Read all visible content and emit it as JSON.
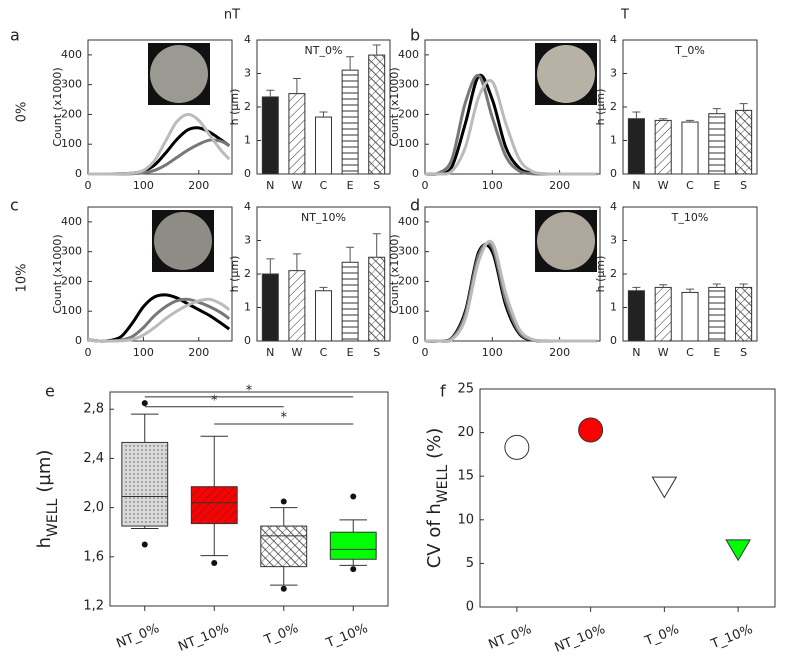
{
  "figure": {
    "column_labels": [
      "nT",
      "T"
    ],
    "row_labels": [
      "0%",
      "10%"
    ],
    "panels": [
      "a",
      "b",
      "c",
      "d",
      "e",
      "f"
    ]
  },
  "chart_data": [
    {
      "type": "line",
      "ylabel": "Count (x1000)",
      "x": [
        0,
        20,
        40,
        60,
        80,
        100,
        120,
        140,
        160,
        180,
        200,
        220,
        240,
        255
      ],
      "xlim": [
        0,
        260
      ],
      "xticks": [
        0,
        100,
        200
      ],
      "ylim": [
        0,
        450
      ],
      "yticks": [
        0,
        100,
        200,
        300,
        400
      ],
      "series": [
        {
          "color": "#000000",
          "values": [
            0,
            0,
            0,
            1,
            3,
            10,
            30,
            70,
            115,
            148,
            155,
            140,
            115,
            95
          ]
        },
        {
          "color": "#777777",
          "values": [
            0,
            0,
            0,
            0,
            1,
            4,
            12,
            30,
            55,
            80,
            100,
            114,
            110,
            95
          ]
        },
        {
          "color": "#bbbbbb",
          "values": [
            0,
            0,
            0,
            1,
            3,
            12,
            45,
            110,
            175,
            200,
            180,
            130,
            80,
            50
          ]
        }
      ]
    },
    {
      "type": "bar",
      "title": "NT_0%",
      "ylabel": "h (µm)",
      "categories": [
        "N",
        "W",
        "C",
        "E",
        "S"
      ],
      "values": [
        2.3,
        2.4,
        1.7,
        3.1,
        3.55
      ],
      "errors": [
        0.2,
        0.45,
        0.15,
        0.4,
        0.3
      ],
      "colors": [
        "#222222",
        "#ffffff",
        "#ffffff",
        "#ffffff",
        "#ffffff"
      ],
      "hatch": [
        "none",
        "diagonal",
        "none",
        "horizontal",
        "cross"
      ],
      "ylim": [
        0,
        4
      ],
      "yticks": [
        0,
        1,
        2,
        3,
        4
      ]
    },
    {
      "type": "line",
      "ylabel": "Count (x1000)",
      "x": [
        0,
        20,
        40,
        60,
        80,
        100,
        120,
        140,
        160,
        180,
        200,
        220,
        240,
        255
      ],
      "xlim": [
        0,
        260
      ],
      "xticks": [
        0,
        100,
        200
      ],
      "ylim": [
        0,
        450
      ],
      "yticks": [
        0,
        100,
        200,
        300,
        400
      ],
      "series": [
        {
          "color": "#000000",
          "values": [
            0,
            1,
            25,
            170,
            330,
            250,
            90,
            20,
            3,
            0,
            0,
            0,
            0,
            0
          ]
        },
        {
          "color": "#777777",
          "values": [
            0,
            3,
            50,
            240,
            330,
            190,
            60,
            10,
            1,
            0,
            0,
            0,
            0,
            0
          ]
        },
        {
          "color": "#bbbbbb",
          "values": [
            0,
            0,
            10,
            90,
            260,
            310,
            170,
            50,
            8,
            1,
            0,
            0,
            0,
            0
          ]
        }
      ]
    },
    {
      "type": "bar",
      "title": "T_0%",
      "ylabel": "h (µm)",
      "categories": [
        "N",
        "W",
        "C",
        "E",
        "S"
      ],
      "values": [
        1.65,
        1.6,
        1.55,
        1.8,
        1.9
      ],
      "errors": [
        0.2,
        0.05,
        0.05,
        0.15,
        0.2
      ],
      "colors": [
        "#222222",
        "#ffffff",
        "#ffffff",
        "#ffffff",
        "#ffffff"
      ],
      "hatch": [
        "none",
        "diagonal",
        "none",
        "horizontal",
        "cross"
      ],
      "ylim": [
        0,
        4
      ],
      "yticks": [
        0,
        1,
        2,
        3,
        4
      ]
    },
    {
      "type": "line",
      "ylabel": "Count (x1000)",
      "x": [
        0,
        20,
        40,
        60,
        80,
        100,
        120,
        140,
        160,
        180,
        200,
        220,
        240,
        255
      ],
      "xlim": [
        0,
        260
      ],
      "xticks": [
        0,
        100,
        200
      ],
      "ylim": [
        0,
        450
      ],
      "yticks": [
        0,
        100,
        200,
        300,
        400
      ],
      "series": [
        {
          "color": "#000000",
          "values": [
            5,
            0,
            2,
            15,
            60,
            115,
            148,
            155,
            145,
            125,
            105,
            85,
            60,
            40
          ]
        },
        {
          "color": "#777777",
          "values": [
            5,
            0,
            0,
            3,
            15,
            45,
            85,
            115,
            135,
            140,
            130,
            115,
            95,
            75
          ]
        },
        {
          "color": "#bbbbbb",
          "values": [
            5,
            0,
            0,
            1,
            5,
            20,
            45,
            75,
            100,
            120,
            135,
            140,
            125,
            105
          ]
        }
      ]
    },
    {
      "type": "bar",
      "title": "NT_10%",
      "ylabel": "h (µm)",
      "categories": [
        "N",
        "W",
        "C",
        "E",
        "S"
      ],
      "values": [
        2.0,
        2.1,
        1.5,
        2.35,
        2.5
      ],
      "errors": [
        0.45,
        0.5,
        0.1,
        0.45,
        0.7
      ],
      "colors": [
        "#222222",
        "#ffffff",
        "#ffffff",
        "#ffffff",
        "#ffffff"
      ],
      "hatch": [
        "none",
        "diagonal",
        "none",
        "horizontal",
        "cross"
      ],
      "ylim": [
        0,
        4
      ],
      "yticks": [
        0,
        1,
        2,
        3,
        4
      ]
    },
    {
      "type": "line",
      "ylabel": "Count (x1000)",
      "x": [
        0,
        20,
        40,
        60,
        80,
        100,
        120,
        140,
        160,
        180,
        200,
        220,
        240,
        255
      ],
      "xlim": [
        0,
        260
      ],
      "xticks": [
        0,
        100,
        200
      ],
      "ylim": [
        0,
        450
      ],
      "yticks": [
        0,
        100,
        200,
        300,
        400
      ],
      "series": [
        {
          "color": "#000000",
          "values": [
            0,
            0,
            10,
            100,
            300,
            300,
            120,
            25,
            3,
            0,
            0,
            0,
            0,
            0
          ]
        },
        {
          "color": "#777777",
          "values": [
            0,
            0,
            8,
            90,
            290,
            315,
            135,
            30,
            4,
            0,
            0,
            0,
            0,
            0
          ]
        },
        {
          "color": "#bbbbbb",
          "values": [
            0,
            0,
            5,
            75,
            270,
            330,
            160,
            40,
            5,
            1,
            0,
            0,
            0,
            0
          ]
        }
      ]
    },
    {
      "type": "bar",
      "title": "T_10%",
      "ylabel": "h (µm)",
      "categories": [
        "N",
        "W",
        "C",
        "E",
        "S"
      ],
      "values": [
        1.5,
        1.6,
        1.45,
        1.6,
        1.6
      ],
      "errors": [
        0.1,
        0.08,
        0.1,
        0.1,
        0.1
      ],
      "colors": [
        "#222222",
        "#ffffff",
        "#ffffff",
        "#ffffff",
        "#ffffff"
      ],
      "hatch": [
        "none",
        "diagonal",
        "none",
        "horizontal",
        "cross"
      ],
      "ylim": [
        0,
        4
      ],
      "yticks": [
        0,
        1,
        2,
        3,
        4
      ]
    },
    {
      "type": "box",
      "ylabel": "h",
      "ylabel_sub": "WELL",
      "ylabel_unit": "(µm)",
      "categories": [
        "NT_0%",
        "NT_10%",
        "T_0%",
        "T_10%"
      ],
      "boxes": [
        {
          "whisker_low": 1.83,
          "q1": 1.85,
          "median": 2.09,
          "q3": 2.53,
          "whisker_high": 2.76,
          "outliers": [
            2.85,
            1.7
          ]
        },
        {
          "whisker_low": 1.61,
          "q1": 1.87,
          "median": 2.04,
          "q3": 2.17,
          "whisker_high": 2.58,
          "outliers": [
            1.55
          ]
        },
        {
          "whisker_low": 1.37,
          "q1": 1.52,
          "median": 1.77,
          "q3": 1.85,
          "whisker_high": 2.0,
          "outliers": [
            2.05,
            1.34
          ]
        },
        {
          "whisker_low": 1.53,
          "q1": 1.58,
          "median": 1.66,
          "q3": 1.8,
          "whisker_high": 1.9,
          "outliers": [
            2.09,
            1.5
          ]
        }
      ],
      "colors": [
        "#d9d9d9",
        "#ff0000",
        "#ffffff",
        "#00ff00"
      ],
      "hatch": [
        "dots",
        "diagonal",
        "cross",
        "none"
      ],
      "significance": [
        {
          "from": 0,
          "to": 3,
          "y": 2.9,
          "label": "*"
        },
        {
          "from": 0,
          "to": 2,
          "y": 2.82,
          "label": "*"
        },
        {
          "from": 1,
          "to": 3,
          "y": 2.68,
          "label": "*"
        }
      ],
      "ylim": [
        1.2,
        2.94
      ],
      "yticks": [
        {
          "value": 1.2,
          "label": "1,2"
        },
        {
          "value": 1.6,
          "label": "1,6"
        },
        {
          "value": 2.0,
          "label": "2,0"
        },
        {
          "value": 2.4,
          "label": "2,4"
        },
        {
          "value": 2.8,
          "label": "2,8"
        }
      ]
    },
    {
      "type": "scatter",
      "ylabel": "CV of h",
      "ylabel_sub": "WELL",
      "ylabel_unit": "(%)",
      "categories": [
        "NT_0%",
        "NT_10%",
        "T_0%",
        "T_10%"
      ],
      "values": [
        18.3,
        20.3,
        13.8,
        6.6
      ],
      "markers": [
        "circle",
        "circle",
        "triangle-down",
        "triangle-down"
      ],
      "colors": [
        "#ffffff",
        "#ff0000",
        "#ffffff",
        "#00ff00"
      ],
      "ylim": [
        0,
        25
      ],
      "yticks": [
        0,
        5,
        10,
        15,
        20,
        25
      ]
    }
  ]
}
